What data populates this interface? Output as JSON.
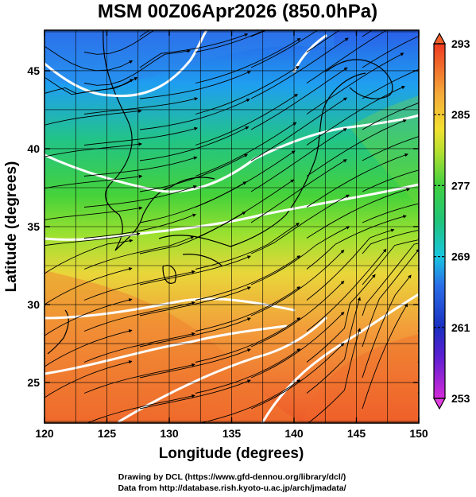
{
  "chart_data": {
    "type": "heatmap",
    "title": "MSM 00Z06Apr2026 (850.0hPa)",
    "xlabel": "Longitude (degrees)",
    "ylabel": "Latitude  (degrees)",
    "xlim": [
      120,
      150
    ],
    "ylim": [
      22.4,
      47.6
    ],
    "x_ticks": [
      120,
      125,
      130,
      135,
      140,
      145,
      150
    ],
    "y_ticks": [
      25,
      30,
      35,
      40,
      45
    ],
    "grid": true,
    "colorbar": {
      "range": [
        253,
        293
      ],
      "ticks": [
        253,
        261,
        269,
        277,
        285,
        293
      ],
      "placement": "right",
      "end_arrows": true
    },
    "field": "temperature (K) with wind streamlines",
    "credits": [
      "Drawing by DCL (https://www.gfd-dennou.org/library/dcl/)",
      "Data from http://database.rish.kyoto-u.ac.jp/arch/jmadata/"
    ]
  }
}
